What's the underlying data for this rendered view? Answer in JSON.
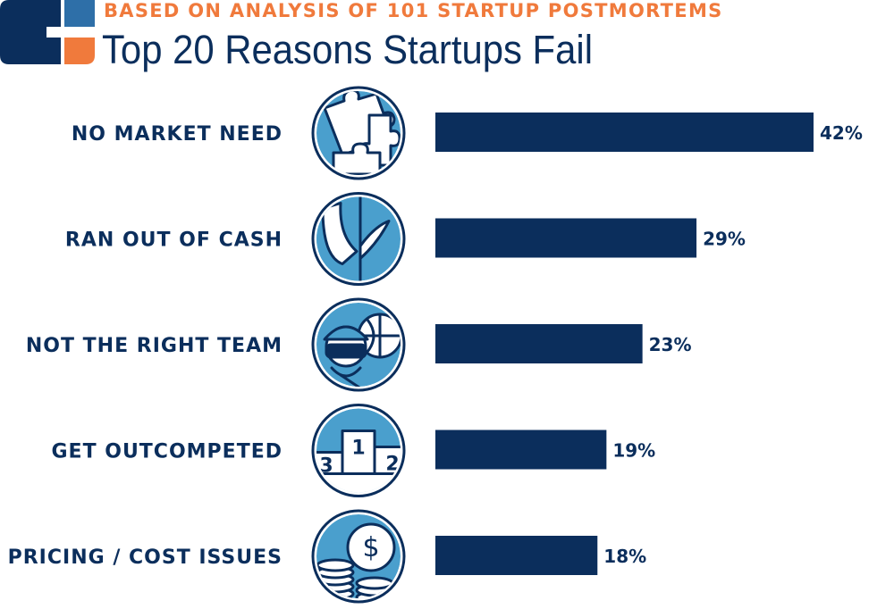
{
  "header": {
    "subtitle": "BASED ON ANALYSIS OF 101 STARTUP POSTMORTEMS",
    "title": "Top 20 Reasons Startups Fail"
  },
  "colors": {
    "navy": "#0b2e5c",
    "blue": "#4a9fcd",
    "orange": "#f07a3c"
  },
  "chart_data": {
    "type": "bar",
    "orientation": "horizontal",
    "title": "Top 20 Reasons Startups Fail",
    "subtitle": "BASED ON ANALYSIS OF 101 STARTUP POSTMORTEMS",
    "categories": [
      "NO MARKET NEED",
      "RAN OUT OF CASH",
      "NOT THE RIGHT TEAM",
      "GET OUTCOMPETED",
      "PRICING / COST ISSUES"
    ],
    "values": [
      42,
      29,
      23,
      19,
      18
    ],
    "value_labels": [
      "42%",
      "29%",
      "23%",
      "19%",
      "18%"
    ],
    "icons": [
      "puzzle-icon",
      "empty-pocket-icon",
      "team-icon",
      "podium-icon",
      "coins-icon"
    ],
    "podium_labels": [
      "1",
      "2",
      "3"
    ],
    "coin_symbol": "$",
    "xlim": [
      0,
      42
    ],
    "grid": false,
    "legend": "none"
  }
}
